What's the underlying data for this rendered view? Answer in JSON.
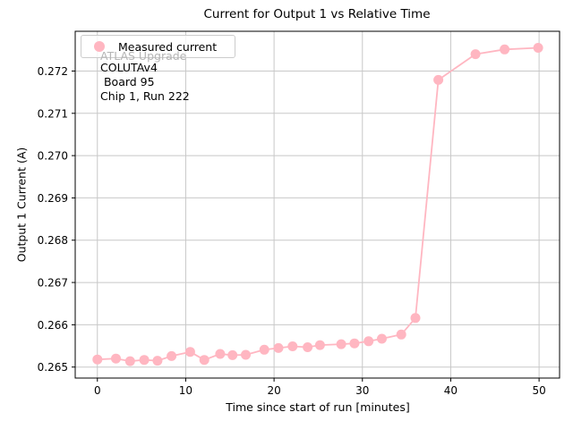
{
  "chart_data": {
    "type": "line",
    "title": "Current for Output 1 vs Relative Time",
    "xlabel": "Time since start of run [minutes]",
    "ylabel": "Output 1 Current (A)",
    "xlim": [
      -2.51,
      52.32
    ],
    "ylim": [
      0.26474,
      0.27294
    ],
    "grid": true,
    "legend_position": "upper left",
    "colors": {
      "series": "#ffb6c1",
      "grid": "#c8c8c8",
      "spine": "#000000",
      "tick_text": "#000000",
      "legend_border": "#cccccc",
      "annotation_gray": "#b5b5b5"
    },
    "xticks": [
      {
        "v": 0,
        "label": "0"
      },
      {
        "v": 10,
        "label": "10"
      },
      {
        "v": 20,
        "label": "20"
      },
      {
        "v": 30,
        "label": "30"
      },
      {
        "v": 40,
        "label": "40"
      },
      {
        "v": 50,
        "label": "50"
      }
    ],
    "yticks": [
      {
        "v": 0.265,
        "label": "0.265"
      },
      {
        "v": 0.266,
        "label": "0.266"
      },
      {
        "v": 0.267,
        "label": "0.267"
      },
      {
        "v": 0.268,
        "label": "0.268"
      },
      {
        "v": 0.269,
        "label": "0.269"
      },
      {
        "v": 0.27,
        "label": "0.270"
      },
      {
        "v": 0.271,
        "label": "0.271"
      },
      {
        "v": 0.272,
        "label": "0.272"
      }
    ],
    "legend": {
      "entries": [
        {
          "label": "Measured current",
          "marker": "circle-icon",
          "color": "#ffb6c1"
        }
      ]
    },
    "series": [
      {
        "name": "Measured current",
        "color": "#ffb6c1",
        "marker": "o",
        "x": [
          0.0,
          2.1,
          3.7,
          5.3,
          6.8,
          8.4,
          10.5,
          12.1,
          13.9,
          15.3,
          16.8,
          18.9,
          20.5,
          22.1,
          23.8,
          25.2,
          27.6,
          29.1,
          30.7,
          32.2,
          34.4,
          36.0,
          38.6,
          42.8,
          46.1,
          49.9
        ],
        "y": [
          0.26518,
          0.2652,
          0.26514,
          0.26517,
          0.26515,
          0.26526,
          0.26536,
          0.26517,
          0.26531,
          0.26528,
          0.26529,
          0.26541,
          0.26545,
          0.26549,
          0.26547,
          0.26552,
          0.26554,
          0.26556,
          0.26561,
          0.26567,
          0.26577,
          0.26616,
          0.27179,
          0.2724,
          0.27251,
          0.27255
        ]
      }
    ],
    "annotations": [
      {
        "text": "ATLAS Upgrade",
        "color": "#b5b5b5"
      },
      {
        "text": "COLUTAv4",
        "color": "#000000"
      },
      {
        "text": " Board 95",
        "color": "#000000"
      },
      {
        "text": "Chip 1, Run 222",
        "color": "#000000"
      }
    ]
  }
}
